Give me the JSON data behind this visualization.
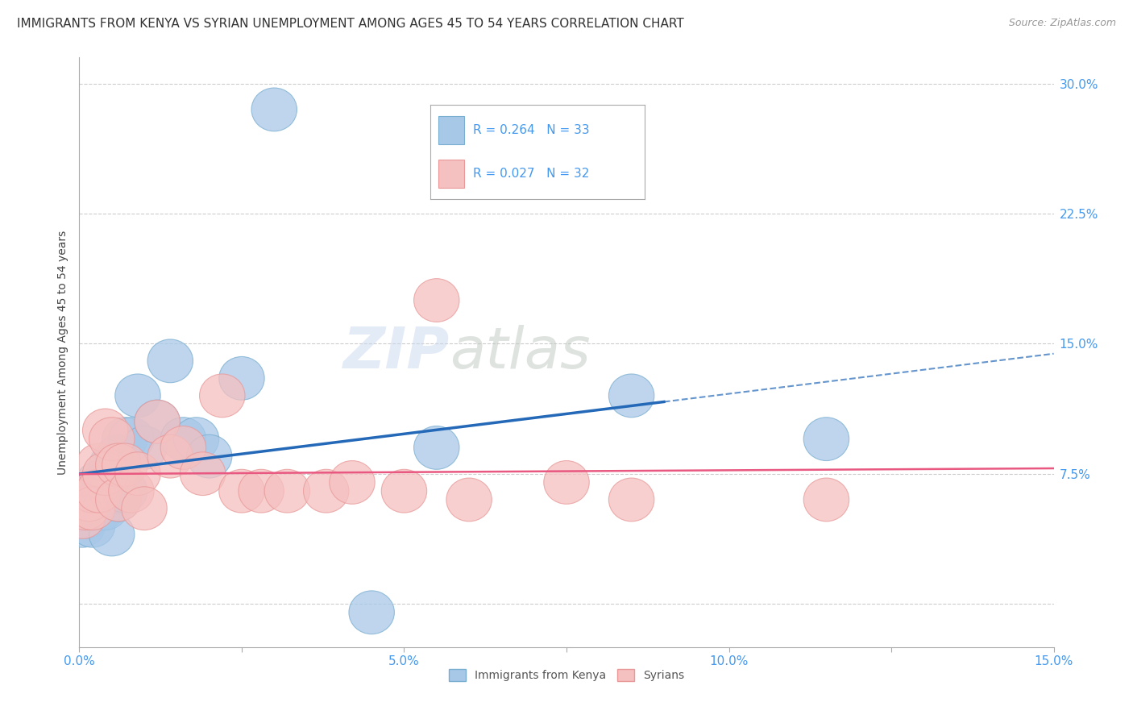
{
  "title": "IMMIGRANTS FROM KENYA VS SYRIAN UNEMPLOYMENT AMONG AGES 45 TO 54 YEARS CORRELATION CHART",
  "source": "Source: ZipAtlas.com",
  "ylabel": "Unemployment Among Ages 45 to 54 years",
  "xlim": [
    0.0,
    0.15
  ],
  "ylim": [
    -0.025,
    0.315
  ],
  "xtick_positions": [
    0.0,
    0.025,
    0.05,
    0.075,
    0.1,
    0.125,
    0.15
  ],
  "xticklabels": [
    "0.0%",
    "",
    "5.0%",
    "",
    "10.0%",
    "",
    "15.0%"
  ],
  "ytick_positions": [
    0.0,
    0.075,
    0.15,
    0.225,
    0.3
  ],
  "ytick_labels": [
    "",
    "7.5%",
    "15.0%",
    "22.5%",
    "30.0%"
  ],
  "color_kenya": "#a8c8e8",
  "color_kenya_edge": "#7aaed0",
  "color_syria": "#f5c0c0",
  "color_syria_edge": "#e89898",
  "color_kenya_line": "#2468b8",
  "color_syria_line": "#e85880",
  "background_color": "#ffffff",
  "grid_color": "#cccccc",
  "kenya_x": [
    0.0005,
    0.001,
    0.001,
    0.0015,
    0.002,
    0.002,
    0.0025,
    0.003,
    0.003,
    0.0035,
    0.004,
    0.004,
    0.005,
    0.005,
    0.005,
    0.006,
    0.006,
    0.007,
    0.007,
    0.008,
    0.009,
    0.01,
    0.012,
    0.014,
    0.016,
    0.018,
    0.02,
    0.025,
    0.03,
    0.045,
    0.055,
    0.085,
    0.115
  ],
  "kenya_y": [
    0.045,
    0.06,
    0.05,
    0.055,
    0.06,
    0.045,
    0.065,
    0.07,
    0.055,
    0.055,
    0.07,
    0.055,
    0.08,
    0.065,
    0.04,
    0.085,
    0.06,
    0.095,
    0.065,
    0.095,
    0.12,
    0.09,
    0.105,
    0.14,
    0.095,
    0.095,
    0.085,
    0.13,
    0.285,
    -0.005,
    0.09,
    0.12,
    0.095
  ],
  "syria_x": [
    0.0005,
    0.001,
    0.0015,
    0.002,
    0.002,
    0.003,
    0.003,
    0.004,
    0.004,
    0.005,
    0.006,
    0.006,
    0.007,
    0.008,
    0.009,
    0.01,
    0.012,
    0.014,
    0.016,
    0.019,
    0.022,
    0.025,
    0.028,
    0.032,
    0.038,
    0.042,
    0.05,
    0.055,
    0.06,
    0.075,
    0.085,
    0.115
  ],
  "syria_y": [
    0.05,
    0.055,
    0.06,
    0.065,
    0.055,
    0.08,
    0.065,
    0.1,
    0.075,
    0.095,
    0.08,
    0.06,
    0.08,
    0.065,
    0.075,
    0.055,
    0.105,
    0.085,
    0.09,
    0.075,
    0.12,
    0.065,
    0.065,
    0.065,
    0.065,
    0.07,
    0.065,
    0.175,
    0.06,
    0.07,
    0.06,
    0.06
  ],
  "watermark_zip": "ZIP",
  "watermark_atlas": "atlas",
  "title_fontsize": 11,
  "source_fontsize": 9,
  "tick_fontsize": 11,
  "ylabel_fontsize": 10
}
